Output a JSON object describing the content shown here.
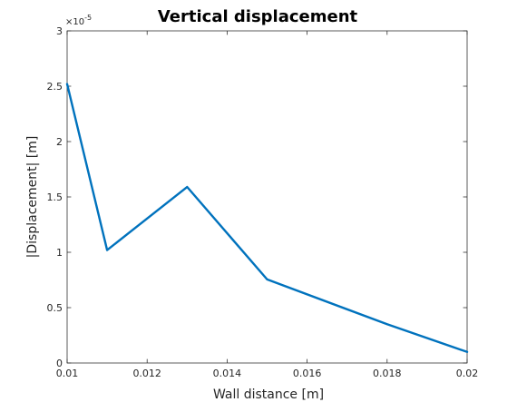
{
  "chart_data": {
    "type": "line",
    "title": "Vertical displacement",
    "xlabel": "Wall distance [m]",
    "ylabel": "|Displacement| [m]",
    "xlim": [
      0.01,
      0.02
    ],
    "ylim": [
      0,
      3
    ],
    "y_multiplier": "×10",
    "y_exponent": "-5",
    "x_ticks": [
      0.01,
      0.012,
      0.014,
      0.016,
      0.018,
      0.02
    ],
    "x_tick_labels": [
      "0.01",
      "0.012",
      "0.014",
      "0.016",
      "0.018",
      "0.02"
    ],
    "y_ticks": [
      0,
      0.5,
      1,
      1.5,
      2,
      2.5,
      3
    ],
    "y_tick_labels": [
      "0",
      "0.5",
      "1",
      "1.5",
      "2",
      "2.5",
      "3"
    ],
    "grid": false,
    "series": [
      {
        "x": [
          0.01,
          0.011,
          0.013,
          0.015,
          0.018,
          0.02
        ],
        "y": [
          2.52,
          1.02,
          1.59,
          0.755,
          0.35,
          0.1
        ],
        "color": "#0072BD"
      }
    ]
  }
}
